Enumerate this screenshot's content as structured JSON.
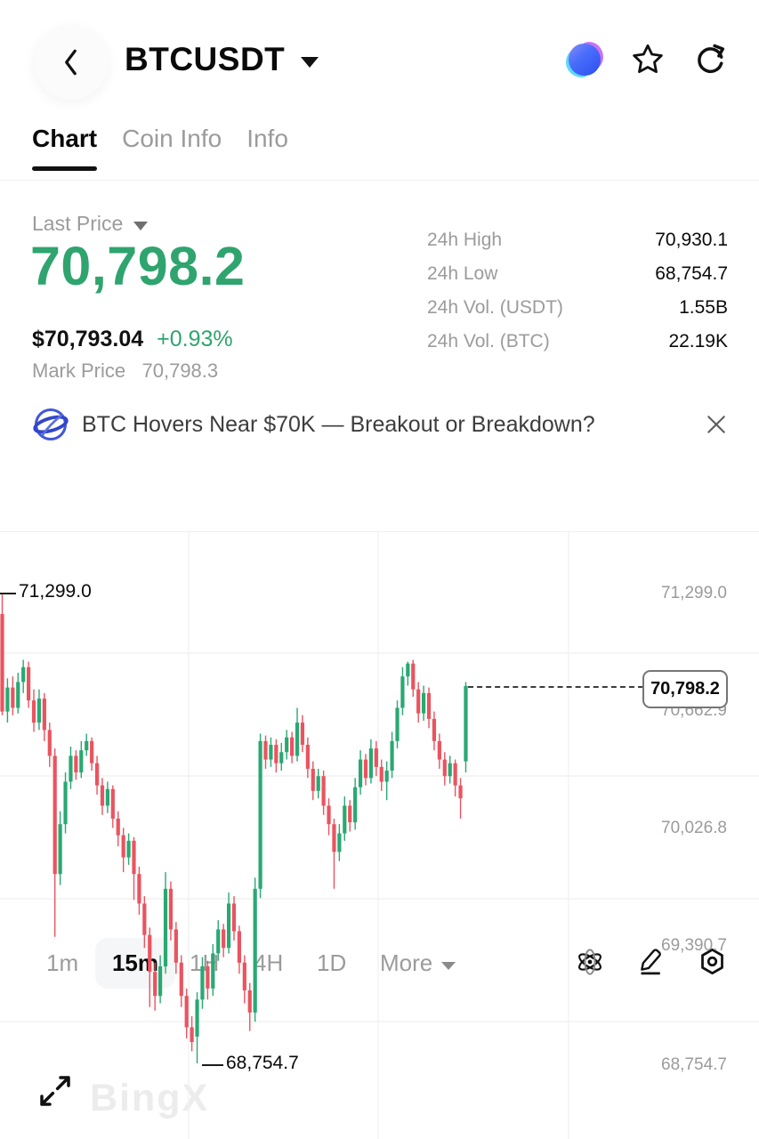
{
  "colors": {
    "up_green": "#2AA873",
    "down_red": "#E9545F",
    "price_green": "#2FA46F",
    "text_dark": "#0A0A0A",
    "text_gray": "#9B9B9B",
    "grid": "#F2F2F2"
  },
  "header": {
    "title": "BTCUSDT",
    "icons": [
      "ai-assistant",
      "favorite-star",
      "share"
    ]
  },
  "tabs": [
    {
      "label": "Chart",
      "active": true
    },
    {
      "label": "Coin Info",
      "active": false
    },
    {
      "label": "Info",
      "active": false
    }
  ],
  "price_panel": {
    "label": "Last Price",
    "last_price": "70,798.2",
    "usd_price": "$70,793.04",
    "change_pct": "+0.93%",
    "mark_price_label": "Mark Price",
    "mark_price": "70,798.3"
  },
  "stats": [
    {
      "label": "24h High",
      "value": "70,930.1"
    },
    {
      "label": "24h Low",
      "value": "68,754.7"
    },
    {
      "label": "24h Vol. (USDT)",
      "value": "1.55B"
    },
    {
      "label": "24h Vol. (BTC)",
      "value": "22.19K"
    }
  ],
  "news_banner": {
    "icon": "news-globe",
    "text": "BTC Hovers Near $70K — Breakout or Breakdown?",
    "close_icon": "close"
  },
  "timeframe_bar": {
    "items": [
      {
        "label": "1m",
        "active": false
      },
      {
        "label": "15m",
        "active": true
      },
      {
        "label": "1H",
        "active": false
      },
      {
        "label": "4H",
        "active": false
      },
      {
        "label": "1D",
        "active": false
      },
      {
        "label": "More",
        "active": false,
        "dropdown": true
      }
    ],
    "icons": [
      "indicators-atom",
      "draw-pencil",
      "chart-settings"
    ]
  },
  "chart_data": {
    "type": "candlestick",
    "symbol": "BTCUSDT",
    "interval": "15m",
    "y_axis_labels": [
      "71,299.0",
      "70,662.9",
      "70,026.8",
      "69,390.7",
      "68,754.7"
    ],
    "y_axis_values": [
      71299.0,
      70662.9,
      70026.8,
      69390.7,
      68754.7
    ],
    "high_marker": "71,299.0",
    "low_marker": "68,754.7",
    "current_price": "70,798.2",
    "current_price_value": 70798.2,
    "up_color": "#2AA873",
    "down_color": "#E9545F",
    "grid": true,
    "candles": [
      [
        71188,
        71299,
        70640,
        70660
      ],
      [
        70660,
        70840,
        70600,
        70790
      ],
      [
        70790,
        70850,
        70640,
        70680
      ],
      [
        70680,
        70870,
        70650,
        70820
      ],
      [
        70820,
        70940,
        70760,
        70900
      ],
      [
        70900,
        70930,
        70680,
        70720
      ],
      [
        70720,
        70780,
        70550,
        70600
      ],
      [
        70600,
        70780,
        70560,
        70730
      ],
      [
        70730,
        70760,
        70500,
        70560
      ],
      [
        70560,
        70600,
        70360,
        70420
      ],
      [
        70420,
        70460,
        69440,
        69780
      ],
      [
        69780,
        70120,
        69720,
        70050
      ],
      [
        70050,
        70330,
        70000,
        70280
      ],
      [
        70280,
        70470,
        70240,
        70420
      ],
      [
        70420,
        70450,
        70290,
        70330
      ],
      [
        70330,
        70500,
        70300,
        70450
      ],
      [
        70450,
        70540,
        70420,
        70500
      ],
      [
        70500,
        70520,
        70340,
        70380
      ],
      [
        70380,
        70420,
        70210,
        70260
      ],
      [
        70260,
        70300,
        70100,
        70150
      ],
      [
        70150,
        70280,
        70110,
        70240
      ],
      [
        70240,
        70260,
        70030,
        70080
      ],
      [
        70080,
        70120,
        69930,
        69990
      ],
      [
        69990,
        70030,
        69790,
        69870
      ],
      [
        69870,
        70000,
        69830,
        69960
      ],
      [
        69960,
        69980,
        69640,
        69780
      ],
      [
        69780,
        69820,
        69560,
        69620
      ],
      [
        69620,
        69660,
        69380,
        69450
      ],
      [
        69450,
        69490,
        69060,
        69250
      ],
      [
        69250,
        69300,
        69040,
        69120
      ],
      [
        69120,
        69340,
        69080,
        69280
      ],
      [
        69280,
        69790,
        69240,
        69700
      ],
      [
        69700,
        69740,
        69420,
        69480
      ],
      [
        69480,
        69520,
        69240,
        69300
      ],
      [
        69300,
        69340,
        69060,
        69120
      ],
      [
        69120,
        69160,
        68890,
        68950
      ],
      [
        68950,
        69010,
        68820,
        68870
      ],
      [
        68900,
        69140,
        68754.7,
        69100
      ],
      [
        69100,
        69330,
        69050,
        69280
      ],
      [
        69280,
        69310,
        69100,
        69160
      ],
      [
        69160,
        69400,
        69120,
        69350
      ],
      [
        69350,
        69530,
        69310,
        69480
      ],
      [
        69480,
        69510,
        69330,
        69380
      ],
      [
        69380,
        69680,
        69350,
        69620
      ],
      [
        69620,
        69660,
        69420,
        69470
      ],
      [
        69470,
        69500,
        69240,
        69300
      ],
      [
        69300,
        69340,
        69080,
        69150
      ],
      [
        69150,
        69190,
        68930,
        69030
      ],
      [
        69030,
        69760,
        68980,
        69700
      ],
      [
        69700,
        70540,
        69650,
        70500
      ],
      [
        70500,
        70530,
        70350,
        70400
      ],
      [
        70400,
        70520,
        70360,
        70480
      ],
      [
        70480,
        70510,
        70330,
        70380
      ],
      [
        70380,
        70490,
        70340,
        70440
      ],
      [
        70440,
        70560,
        70400,
        70520
      ],
      [
        70520,
        70550,
        70380,
        70420
      ],
      [
        70420,
        70680,
        70390,
        70600
      ],
      [
        70600,
        70640,
        70440,
        70480
      ],
      [
        70480,
        70520,
        70300,
        70350
      ],
      [
        70350,
        70390,
        70180,
        70230
      ],
      [
        70230,
        70350,
        70190,
        70310
      ],
      [
        70310,
        70340,
        70100,
        70150
      ],
      [
        70150,
        70190,
        69990,
        70050
      ],
      [
        70050,
        70080,
        69700,
        69900
      ],
      [
        69900,
        70050,
        69850,
        70000
      ],
      [
        70000,
        70200,
        69960,
        70150
      ],
      [
        70150,
        70180,
        70010,
        70060
      ],
      [
        70060,
        70300,
        70020,
        70250
      ],
      [
        70250,
        70450,
        70210,
        70400
      ],
      [
        70400,
        70430,
        70260,
        70300
      ],
      [
        70300,
        70510,
        70270,
        70460
      ],
      [
        70460,
        70500,
        70310,
        70360
      ],
      [
        70360,
        70400,
        70230,
        70280
      ],
      [
        70280,
        70390,
        70180,
        70340
      ],
      [
        70340,
        70550,
        70300,
        70500
      ],
      [
        70500,
        70720,
        70460,
        70680
      ],
      [
        70680,
        70900,
        70640,
        70850
      ],
      [
        70850,
        70930,
        70800,
        70920
      ],
      [
        70920,
        70940,
        70740,
        70780
      ],
      [
        70780,
        70820,
        70600,
        70650
      ],
      [
        70650,
        70800,
        70610,
        70760
      ],
      [
        70760,
        70790,
        70570,
        70620
      ],
      [
        70620,
        70660,
        70450,
        70500
      ],
      [
        70500,
        70540,
        70350,
        70400
      ],
      [
        70400,
        70440,
        70260,
        70310
      ],
      [
        70310,
        70420,
        70270,
        70380
      ],
      [
        70380,
        70400,
        70200,
        70260
      ],
      [
        70260,
        70300,
        70080,
        70190
      ],
      [
        70390,
        70820,
        70330,
        70798.2
      ]
    ]
  },
  "watermark": "BingX"
}
